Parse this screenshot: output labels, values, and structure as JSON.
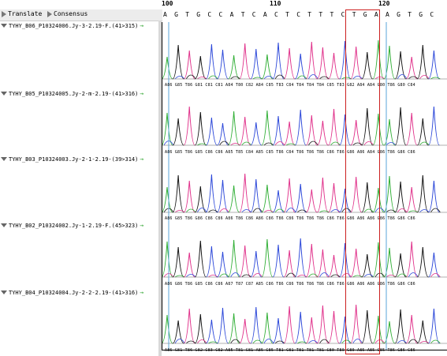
{
  "toolbar": {
    "translate_label": "Translate",
    "consensus_label": "Consensus"
  },
  "ruler": {
    "ticks": [
      "100",
      "110",
      "120"
    ]
  },
  "consensus": [
    "A",
    "G",
    "T",
    "G",
    "C",
    "C",
    "A",
    "T",
    "C",
    "A",
    "C",
    "T",
    "C",
    "T",
    "T",
    "T",
    "C",
    "T",
    "G",
    "A",
    "A",
    "G",
    "T",
    "G",
    "C"
  ],
  "sequences": [
    {
      "name": "TYHY_B06_P10324006.Jy-3-2.19-F.(41>315)",
      "calls": "A86 G85 T86 G81 C81 C81 A84 T80 C82 A84 C85 T83 C84 T84 T84 T84 C85 T83 G82 A84 A84 G80 T86 G80 C84"
    },
    {
      "name": "TYHY_B05_P10324005.Jy-2-m-2.19-(41>316)",
      "calls": "A86 G85 T86 G85 C86 C86 A85 T85 C84 A85 C85 T86 C84 T86 T86 T86 C86 T86 G86 A86 A84 G86 T86 G86 C86"
    },
    {
      "name": "TYHY_B03_P10324003.Jy-2-1-2.19-(39>314)",
      "calls": "A86 G85 T86 G86 C86 C86 A86 T86 C86 A86 C86 T86 C86 T86 T86 T86 C86 T86 G86 A86 A86 G86 T86 G86 C86"
    },
    {
      "name": "TYHY_B02_P10324002.Jy-1-2.19-F.(45>323)",
      "calls": "A86 G86 T86 G85 C86 C86 A87 T87 C87 A85 C86 T86 C86 T86 T86 T86 C86 T86 G86 A86 A86 G86 T86 G86 C86"
    },
    {
      "name": "TYHY_B04_P10324004.Jy-2-2-2.19-(41>316)",
      "calls": "A86 G81 T86 G82 C83 C82 A85 T81 C81 A85 C85 T81 C81 T81 T81 T81 C80 T80 G80 A85 A85 G85 T86 G86 C86"
    }
  ],
  "colors": {
    "A": "#2fae34",
    "C": "#2b47d9",
    "G": "#111111",
    "T": "#e0308a",
    "highlight": "#cc2020"
  },
  "icons": [
    "expand-triangle-icon",
    "collapse-triangle-icon",
    "green-arrow-icon"
  ]
}
